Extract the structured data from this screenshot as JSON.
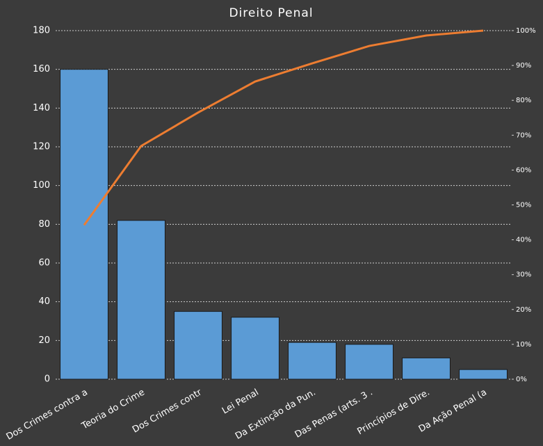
{
  "chart_data": {
    "type": "bar",
    "title": "Direito Penal",
    "categories": [
      "Dos Crimes contra a",
      "Teoria do Crime",
      "Dos Crimes contr",
      "Lei Penal",
      "Da Extinção da Pun.",
      "Das Penas (arts. 3 .",
      "Princípios de Dire.",
      "Da Ação Penal (a"
    ],
    "series": [
      {
        "type": "bar",
        "color": "#5b9bd5",
        "values": [
          160,
          82,
          35,
          32,
          19,
          18,
          11,
          5
        ]
      },
      {
        "type": "line",
        "axis": "y2",
        "color": "#ed7d31",
        "values": [
          44.2,
          66.9,
          76.5,
          85.4,
          90.6,
          95.6,
          98.6,
          100
        ]
      }
    ],
    "ylim": [
      0,
      180
    ],
    "yticks": [
      0,
      20,
      40,
      60,
      80,
      100,
      120,
      140,
      160,
      180
    ],
    "y2lim": [
      0,
      100
    ],
    "y2ticks": [
      {
        "value": 0,
        "label": "0%"
      },
      {
        "value": 10,
        "label": "10%"
      },
      {
        "value": 20,
        "label": "20%"
      },
      {
        "value": 30,
        "label": "30%"
      },
      {
        "value": 40,
        "label": "40%"
      },
      {
        "value": 50,
        "label": "50%"
      },
      {
        "value": 60,
        "label": "60%"
      },
      {
        "value": 70,
        "label": "70%"
      },
      {
        "value": 80,
        "label": "80%"
      },
      {
        "value": 90,
        "label": "90%"
      },
      {
        "value": 100,
        "label": "100%"
      }
    ],
    "grid": true
  }
}
